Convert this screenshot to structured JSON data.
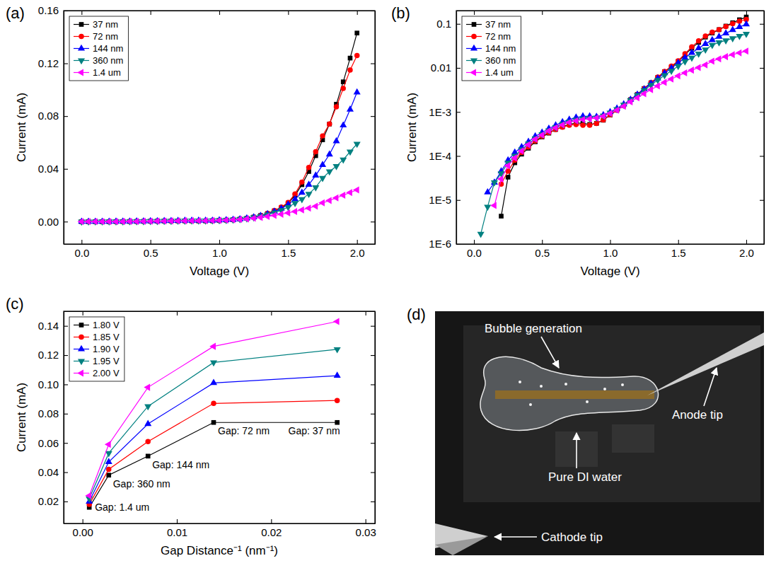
{
  "chart_data": [
    {
      "type": "line",
      "panel": "(a)",
      "x_label": "Voltage (V)",
      "y_label": "Current (mA)",
      "x": [
        0,
        0.05,
        0.1,
        0.15,
        0.2,
        0.25,
        0.3,
        0.35,
        0.4,
        0.45,
        0.5,
        0.55,
        0.6,
        0.65,
        0.7,
        0.75,
        0.8,
        0.85,
        0.9,
        0.95,
        1,
        1.05,
        1.1,
        1.15,
        1.2,
        1.25,
        1.3,
        1.35,
        1.4,
        1.45,
        1.5,
        1.55,
        1.6,
        1.65,
        1.7,
        1.75,
        1.8,
        1.85,
        1.9,
        1.95,
        2
      ],
      "series": [
        {
          "name": "37 nm",
          "color": "#000000",
          "marker": "square",
          "values": [
            0,
            0,
            0,
            0,
            4.3e-06,
            3.3e-05,
            7e-05,
            0.00011,
            0.00015,
            0.00021,
            0.00027,
            0.00033,
            0.0004,
            0.00046,
            0.00052,
            0.00056,
            0.00055,
            0.00052,
            0.00055,
            0.00065,
            0.00085,
            0.0011,
            0.0014,
            0.0019,
            0.0025,
            0.0034,
            0.0046,
            0.0061,
            0.0082,
            0.0105,
            0.014,
            0.02,
            0.028,
            0.038,
            0.05,
            0.062,
            0.074,
            0.089,
            0.106,
            0.124,
            0.143
          ]
        },
        {
          "name": "72 nm",
          "color": "#ff0000",
          "marker": "circle",
          "values": [
            0,
            0,
            0,
            0,
            2.3e-05,
            4.5e-05,
            8e-05,
            0.00012,
            0.00016,
            0.00022,
            0.00028,
            0.00034,
            0.0004,
            0.00045,
            0.0005,
            0.00052,
            0.0005,
            0.0005,
            0.00055,
            0.00066,
            0.00086,
            0.0011,
            0.0014,
            0.0019,
            0.0025,
            0.0034,
            0.0046,
            0.0062,
            0.0083,
            0.011,
            0.0145,
            0.021,
            0.03,
            0.041,
            0.053,
            0.065,
            0.074,
            0.087,
            0.101,
            0.115,
            0.126
          ]
        },
        {
          "name": "144 nm",
          "color": "#0000ff",
          "marker": "triangle-up",
          "values": [
            0,
            0,
            1.5e-05,
            2.5e-05,
            4.5e-05,
            8e-05,
            0.00012,
            0.00016,
            0.00021,
            0.00028,
            0.00034,
            0.00042,
            0.0005,
            0.00059,
            0.00067,
            0.00075,
            0.0008,
            0.0008,
            0.00078,
            0.00085,
            0.001,
            0.0012,
            0.0015,
            0.0019,
            0.0025,
            0.0033,
            0.0044,
            0.0058,
            0.0076,
            0.0099,
            0.013,
            0.017,
            0.022,
            0.028,
            0.035,
            0.043,
            0.051,
            0.061,
            0.073,
            0.085,
            0.098
          ]
        },
        {
          "name": "360 nm",
          "color": "#008080",
          "marker": "triangle-down",
          "values": [
            0,
            1.7e-06,
            7e-06,
            2.5e-05,
            4e-05,
            7e-05,
            0.0001,
            0.00014,
            0.00019,
            0.00025,
            0.00031,
            0.00038,
            0.00045,
            0.00053,
            0.0006,
            0.00066,
            0.0007,
            0.00072,
            0.00074,
            0.00082,
            0.00096,
            0.00115,
            0.00145,
            0.00185,
            0.0024,
            0.0031,
            0.0041,
            0.0053,
            0.0068,
            0.0086,
            0.011,
            0.014,
            0.017,
            0.021,
            0.026,
            0.033,
            0.038,
            0.042,
            0.047,
            0.053,
            0.059
          ]
        },
        {
          "name": "1.4 um",
          "color": "#ff00ff",
          "marker": "triangle-left",
          "values": [
            0,
            0,
            0,
            7.5e-06,
            3e-05,
            6e-05,
            9e-05,
            0.00013,
            0.00018,
            0.00024,
            0.0003,
            0.00037,
            0.00044,
            0.00051,
            0.00058,
            0.00063,
            0.00067,
            0.0007,
            0.00073,
            0.0008,
            0.00093,
            0.0011,
            0.00135,
            0.0017,
            0.0021,
            0.0026,
            0.0032,
            0.0039,
            0.0047,
            0.0056,
            0.0066,
            0.0077,
            0.0089,
            0.0102,
            0.0117,
            0.0142,
            0.016,
            0.018,
            0.02,
            0.022,
            0.024
          ]
        }
      ],
      "xlim": [
        -0.13,
        2.13
      ],
      "ylim": [
        -0.017,
        0.16
      ],
      "xticks": [
        {
          "value": 0,
          "label": "0.0"
        },
        0.5,
        {
          "value": 1,
          "label": "1.0"
        },
        1.5,
        {
          "value": 2,
          "label": "2.0"
        }
      ],
      "yticks": [
        {
          "value": 0,
          "label": "0.00"
        },
        0.04,
        0.08,
        0.12,
        0.16
      ],
      "legend": "upper left"
    },
    {
      "type": "line",
      "panel": "(b)",
      "x_label": "Voltage (V)",
      "y_label": "Current (mA)",
      "log": "y",
      "x": [
        0,
        0.05,
        0.1,
        0.15,
        0.2,
        0.25,
        0.3,
        0.35,
        0.4,
        0.45,
        0.5,
        0.55,
        0.6,
        0.65,
        0.7,
        0.75,
        0.8,
        0.85,
        0.9,
        0.95,
        1,
        1.05,
        1.1,
        1.15,
        1.2,
        1.25,
        1.3,
        1.35,
        1.4,
        1.45,
        1.5,
        1.55,
        1.6,
        1.65,
        1.7,
        1.75,
        1.8,
        1.85,
        1.9,
        1.95,
        2
      ],
      "series": [
        {
          "name": "37 nm",
          "color": "#000000",
          "marker": "square",
          "values": [
            null,
            null,
            null,
            null,
            4.3e-06,
            3.3e-05,
            7e-05,
            0.00011,
            0.00015,
            0.00021,
            0.00027,
            0.00033,
            0.0004,
            0.00046,
            0.00052,
            0.00056,
            0.00055,
            0.00052,
            0.00055,
            0.00065,
            0.00085,
            0.0011,
            0.0014,
            0.0019,
            0.0025,
            0.0034,
            0.0046,
            0.0061,
            0.0082,
            0.0105,
            0.014,
            0.02,
            0.028,
            0.038,
            0.05,
            0.062,
            0.074,
            0.089,
            0.106,
            0.124,
            0.143
          ]
        },
        {
          "name": "72 nm",
          "color": "#ff0000",
          "marker": "circle",
          "values": [
            null,
            null,
            null,
            null,
            2.3e-05,
            4.5e-05,
            8e-05,
            0.00012,
            0.00016,
            0.00022,
            0.00028,
            0.00034,
            0.0004,
            0.00045,
            0.0005,
            0.00052,
            0.0005,
            0.0005,
            0.00055,
            0.00066,
            0.00086,
            0.0011,
            0.0014,
            0.0019,
            0.0025,
            0.0034,
            0.0046,
            0.0062,
            0.0083,
            0.011,
            0.0145,
            0.021,
            0.03,
            0.041,
            0.053,
            0.065,
            0.074,
            0.087,
            0.101,
            0.115,
            0.126
          ]
        },
        {
          "name": "144 nm",
          "color": "#0000ff",
          "marker": "triangle-up",
          "values": [
            null,
            null,
            1.5e-05,
            2.5e-05,
            4.5e-05,
            8e-05,
            0.00012,
            0.00016,
            0.00021,
            0.00028,
            0.00034,
            0.00042,
            0.0005,
            0.00059,
            0.00067,
            0.00075,
            0.0008,
            0.0008,
            0.00078,
            0.00085,
            0.001,
            0.0012,
            0.0015,
            0.0019,
            0.0025,
            0.0033,
            0.0044,
            0.0058,
            0.0076,
            0.0099,
            0.013,
            0.017,
            0.022,
            0.028,
            0.035,
            0.043,
            0.051,
            0.061,
            0.073,
            0.085,
            0.098
          ]
        },
        {
          "name": "360 nm",
          "color": "#008080",
          "marker": "triangle-down",
          "values": [
            null,
            1.7e-06,
            7e-06,
            2.5e-05,
            4e-05,
            7e-05,
            0.0001,
            0.00014,
            0.00019,
            0.00025,
            0.00031,
            0.00038,
            0.00045,
            0.00053,
            0.0006,
            0.00066,
            0.0007,
            0.00072,
            0.00074,
            0.00082,
            0.00096,
            0.00115,
            0.00145,
            0.00185,
            0.0024,
            0.0031,
            0.0041,
            0.0053,
            0.0068,
            0.0086,
            0.011,
            0.014,
            0.017,
            0.021,
            0.026,
            0.033,
            0.038,
            0.042,
            0.047,
            0.053,
            0.059
          ]
        },
        {
          "name": "1.4 um",
          "color": "#ff00ff",
          "marker": "triangle-left",
          "values": [
            null,
            null,
            null,
            7.5e-06,
            3e-05,
            6e-05,
            9e-05,
            0.00013,
            0.00018,
            0.00024,
            0.0003,
            0.00037,
            0.00044,
            0.00051,
            0.00058,
            0.00063,
            0.00067,
            0.0007,
            0.00073,
            0.0008,
            0.00093,
            0.0011,
            0.00135,
            0.0017,
            0.0021,
            0.0026,
            0.0032,
            0.0039,
            0.0047,
            0.0056,
            0.0066,
            0.0077,
            0.0089,
            0.0102,
            0.0117,
            0.0142,
            0.016,
            0.018,
            0.02,
            0.022,
            0.024
          ]
        }
      ],
      "xlim": [
        -0.13,
        2.13
      ],
      "ylim": [
        1e-06,
        0.2
      ],
      "xticks": [
        {
          "value": 0,
          "label": "0.0"
        },
        0.5,
        {
          "value": 1,
          "label": "1.0"
        },
        1.5,
        {
          "value": 2,
          "label": "2.0"
        }
      ],
      "yticks": [
        {
          "value": 1e-06,
          "label": "1E-6"
        },
        {
          "value": 1e-05,
          "label": "1E-5"
        },
        {
          "value": 0.0001,
          "label": "1E-4"
        },
        {
          "value": 0.001,
          "label": "1E-3"
        },
        0.01,
        0.1
      ],
      "legend": "upper left"
    },
    {
      "type": "line",
      "panel": "(c)",
      "x_label": "Gap Distance⁻¹ (nm⁻¹)",
      "y_label": "Current (mA)",
      "x": [
        0.000714,
        0.00278,
        0.00694,
        0.0139,
        0.027
      ],
      "series": [
        {
          "name": "1.80 V",
          "color": "#000000",
          "marker": "square",
          "values": [
            0.016,
            0.038,
            0.051,
            0.074,
            0.074
          ]
        },
        {
          "name": "1.85 V",
          "color": "#ff0000",
          "marker": "circle",
          "values": [
            0.018,
            0.042,
            0.061,
            0.087,
            0.089
          ]
        },
        {
          "name": "1.90 V",
          "color": "#0000ff",
          "marker": "triangle-up",
          "values": [
            0.02,
            0.047,
            0.073,
            0.101,
            0.106
          ]
        },
        {
          "name": "1.95 V",
          "color": "#008080",
          "marker": "triangle-down",
          "values": [
            0.022,
            0.053,
            0.085,
            0.115,
            0.124
          ]
        },
        {
          "name": "2.00 V",
          "color": "#ff00ff",
          "marker": "triangle-left",
          "values": [
            0.024,
            0.059,
            0.098,
            0.126,
            0.143
          ]
        }
      ],
      "annotations": [
        "Gap: 1.4 um",
        "Gap: 360 nm",
        "Gap: 144 nm",
        "Gap: 72 nm",
        "Gap: 37 nm"
      ],
      "xlim": [
        -0.002,
        0.031
      ],
      "ylim": [
        0.005,
        0.15
      ],
      "xticks": [
        {
          "value": 0,
          "label": "0.00"
        },
        0.01,
        0.02,
        0.03
      ],
      "yticks": [
        0.02,
        0.04,
        0.06,
        0.08,
        {
          "value": 0.1,
          "label": "0.10"
        },
        0.12,
        0.14
      ],
      "legend": "upper left"
    }
  ],
  "photo": {
    "panel": "(d)",
    "labels": [
      "Bubble generation",
      "Pure DI water",
      "Anode tip",
      "Cathode tip"
    ]
  }
}
